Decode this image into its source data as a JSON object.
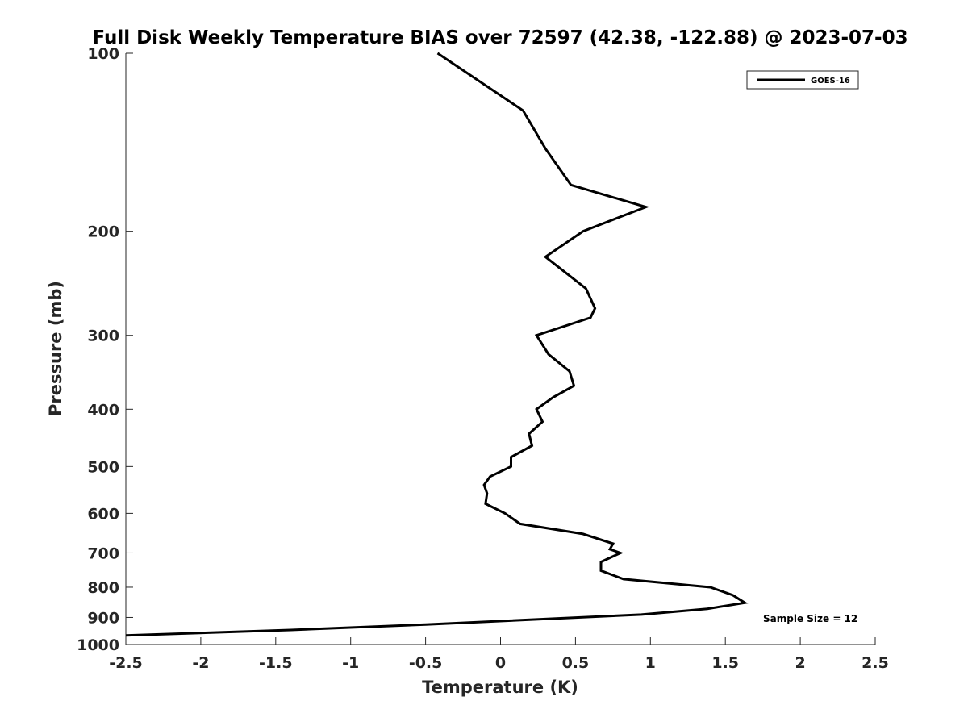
{
  "chart_data": {
    "type": "line",
    "title": "Full Disk Weekly Temperature BIAS over 72597 (42.38, -122.88) @ 2023-07-03",
    "xlabel": "Temperature (K)",
    "ylabel": "Pressure (mb)",
    "xlim": [
      -2.5,
      2.5
    ],
    "ylim": [
      100,
      1000
    ],
    "y_scale": "log",
    "y_reversed": true,
    "grid": false,
    "legend_position": "top-right",
    "x_ticks": [
      "-2.5",
      "-2",
      "-1.5",
      "-1",
      "-0.5",
      "0",
      "0.5",
      "1",
      "1.5",
      "2",
      "2.5"
    ],
    "y_ticks": [
      "100",
      "200",
      "300",
      "400",
      "500",
      "600",
      "700",
      "800",
      "900",
      "1000"
    ],
    "annotation": "Sample Size = 12",
    "series": [
      {
        "name": "GOES-16",
        "color": "#000000",
        "points": [
          {
            "x": -0.42,
            "p": 100
          },
          {
            "x": 0.15,
            "p": 125
          },
          {
            "x": 0.3,
            "p": 145
          },
          {
            "x": 0.47,
            "p": 167
          },
          {
            "x": 0.97,
            "p": 182
          },
          {
            "x": 0.55,
            "p": 200
          },
          {
            "x": 0.3,
            "p": 221
          },
          {
            "x": 0.57,
            "p": 250
          },
          {
            "x": 0.63,
            "p": 270
          },
          {
            "x": 0.6,
            "p": 280
          },
          {
            "x": 0.24,
            "p": 300
          },
          {
            "x": 0.32,
            "p": 323
          },
          {
            "x": 0.46,
            "p": 345
          },
          {
            "x": 0.49,
            "p": 365
          },
          {
            "x": 0.35,
            "p": 382
          },
          {
            "x": 0.24,
            "p": 400
          },
          {
            "x": 0.28,
            "p": 420
          },
          {
            "x": 0.19,
            "p": 440
          },
          {
            "x": 0.21,
            "p": 461
          },
          {
            "x": 0.07,
            "p": 482
          },
          {
            "x": 0.07,
            "p": 500
          },
          {
            "x": -0.07,
            "p": 520
          },
          {
            "x": -0.11,
            "p": 537
          },
          {
            "x": -0.09,
            "p": 555
          },
          {
            "x": -0.1,
            "p": 578
          },
          {
            "x": 0.03,
            "p": 600
          },
          {
            "x": 0.13,
            "p": 625
          },
          {
            "x": 0.55,
            "p": 650
          },
          {
            "x": 0.75,
            "p": 675
          },
          {
            "x": 0.73,
            "p": 690
          },
          {
            "x": 0.8,
            "p": 700
          },
          {
            "x": 0.67,
            "p": 725
          },
          {
            "x": 0.67,
            "p": 750
          },
          {
            "x": 0.82,
            "p": 775
          },
          {
            "x": 1.4,
            "p": 800
          },
          {
            "x": 1.55,
            "p": 825
          },
          {
            "x": 1.63,
            "p": 850
          },
          {
            "x": 1.38,
            "p": 870
          },
          {
            "x": 0.94,
            "p": 890
          },
          {
            "x": -0.5,
            "p": 925
          },
          {
            "x": -1.4,
            "p": 945
          },
          {
            "x": -2.5,
            "p": 965
          }
        ]
      }
    ]
  }
}
